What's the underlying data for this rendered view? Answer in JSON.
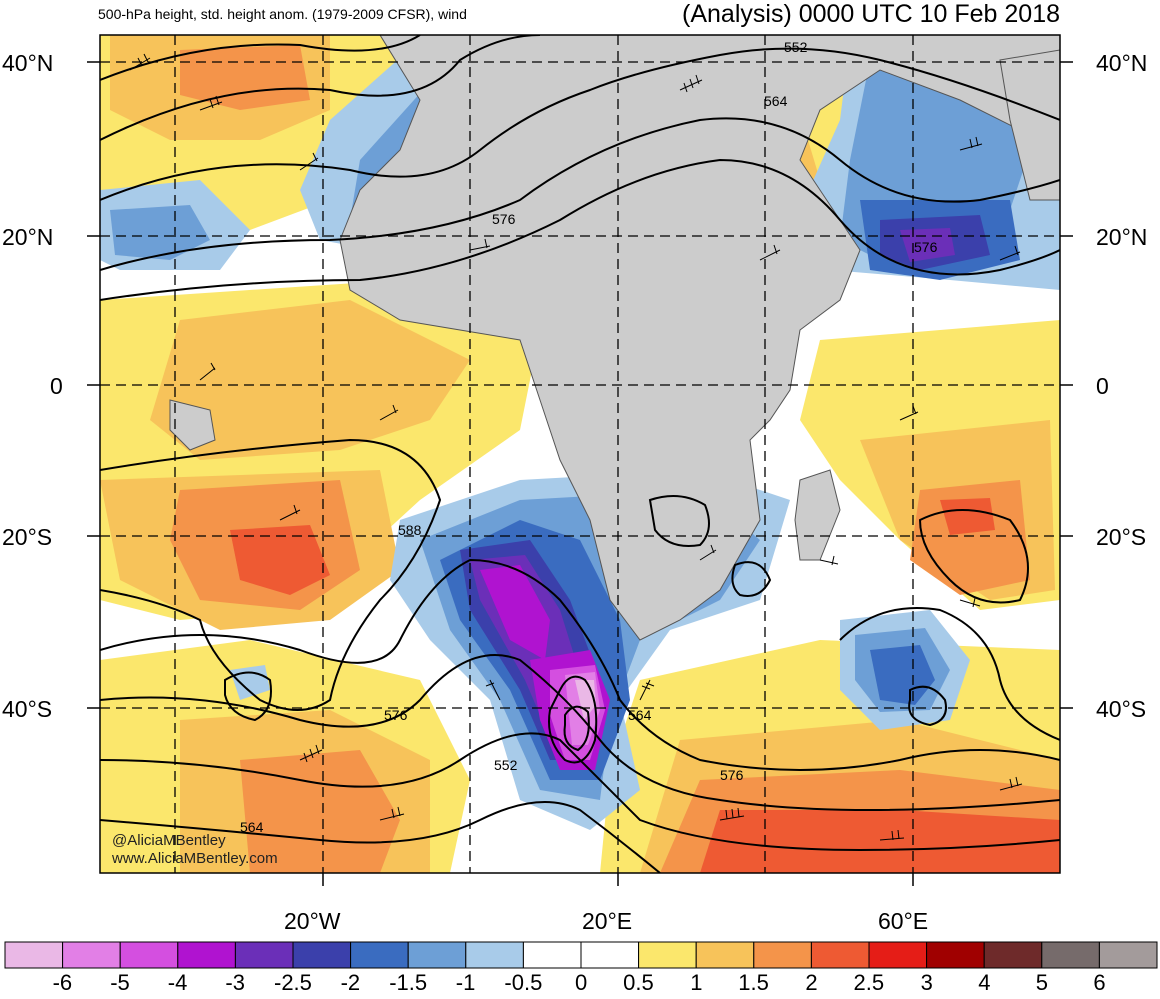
{
  "header": {
    "left_title": "500-hPa height, std. height anom. (1979-2009 CFSR), wind",
    "right_title": "(Analysis) 0000 UTC 10 Feb 2018"
  },
  "axes": {
    "lat_labels": [
      "40°N",
      "20°N",
      "0",
      "20°S",
      "40°S"
    ],
    "lon_labels": [
      "20°W",
      "20°E",
      "60°E"
    ]
  },
  "contour_labels": [
    "552",
    "564",
    "576",
    "576",
    "588",
    "576",
    "564",
    "552",
    "576",
    "564"
  ],
  "credits": [
    "@AliciaMBentley",
    "www.AliciaMBentley.com"
  ],
  "colorbar": {
    "labels": [
      "-6",
      "-5",
      "-4",
      "-3",
      "-2.5",
      "-2",
      "-1.5",
      "-1",
      "-0.5",
      "0",
      "0.5",
      "1",
      "1.5",
      "2",
      "2.5",
      "3",
      "4",
      "5",
      "6"
    ],
    "colors": [
      "#eab8e6",
      "#e27fe6",
      "#d44fe0",
      "#b013d0",
      "#6b2fb8",
      "#3b40ab",
      "#3a6cc0",
      "#6d9fd6",
      "#a8cbe9",
      "#ffffff",
      "#ffffff",
      "#fbe76c",
      "#f7c35a",
      "#f4944a",
      "#ee5a33",
      "#e51d17",
      "#a00000",
      "#6e2a2a",
      "#766b6b",
      "#a39b9b"
    ]
  },
  "map_colors": {
    "land": "#cccccc",
    "coast": "#555555",
    "contour": "#000000",
    "grid": "#000000"
  }
}
